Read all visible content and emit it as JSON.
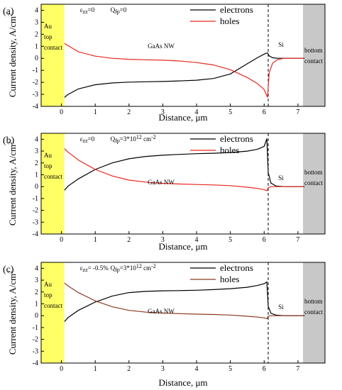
{
  "chart_data": [
    {
      "type": "line",
      "panel_label": "(a)",
      "annotation": "ε",
      "annotation_sub": "zz",
      "annotation_rest": "=0",
      "annotation2": "Q",
      "annotation2_sub": "fp",
      "annotation2_rest": "=0",
      "xlabel": "Distance, μm",
      "ylabel": "Current density, A/cm",
      "ylabel_sup": "2",
      "xlim": [
        -0.6,
        7.8
      ],
      "ylim": [
        -4,
        4.5
      ],
      "xticks": [
        0,
        1,
        2,
        3,
        4,
        5,
        6,
        7
      ],
      "yticks": [
        -4,
        -3,
        -2,
        -1,
        0,
        1,
        2,
        3,
        4
      ],
      "regions": {
        "au_label": [
          "Au",
          "top",
          "contact"
        ],
        "nw_label": "GaAs NW",
        "si_label": "Si",
        "bottom_label": [
          "bottom",
          "contact"
        ]
      },
      "colors": {
        "electrons": "#000000",
        "holes": "#e8281e",
        "au": "#ffff66",
        "bottom": "#c8c8c8"
      },
      "series": [
        {
          "name": "electrons",
          "x": [
            0.09,
            0.2,
            0.5,
            1,
            1.5,
            2,
            2.5,
            3,
            3.5,
            4,
            4.5,
            5,
            5.5,
            5.8,
            6.0,
            6.1,
            6.15,
            6.25,
            6.4,
            6.6,
            7.0,
            7.2
          ],
          "values": [
            -3.25,
            -3.0,
            -2.55,
            -2.2,
            -2.05,
            -1.98,
            -1.95,
            -1.93,
            -1.88,
            -1.82,
            -1.68,
            -1.3,
            -0.45,
            0.05,
            0.35,
            0.45,
            0.2,
            0.05,
            0.0,
            0.0,
            0.0,
            0.0
          ]
        },
        {
          "name": "holes",
          "x": [
            0.09,
            0.2,
            0.5,
            1,
            1.5,
            2,
            2.5,
            3,
            3.5,
            4,
            4.5,
            5,
            5.5,
            5.8,
            6.0,
            6.1,
            6.15,
            6.25,
            6.4,
            6.6,
            7.0,
            7.2
          ],
          "values": [
            1.25,
            1.05,
            0.55,
            0.18,
            0.0,
            -0.08,
            -0.12,
            -0.16,
            -0.22,
            -0.35,
            -0.55,
            -0.95,
            -1.6,
            -2.1,
            -2.6,
            -3.25,
            -1.2,
            -0.4,
            -0.1,
            0.0,
            0.0,
            0.0
          ]
        }
      ]
    },
    {
      "type": "line",
      "panel_label": "(b)",
      "annotation": "ε",
      "annotation_sub": "zz",
      "annotation_rest": "=0",
      "annotation2": "Q",
      "annotation2_sub": "fp",
      "annotation2_rest": "=3*10",
      "annotation2_sup": "12",
      "annotation2_unit": " cm",
      "annotation2_unit_sup": "-2",
      "xlabel": "Distance, μm",
      "ylabel": "Current density, A/cm",
      "ylabel_sup": "2",
      "xlim": [
        -0.6,
        7.8
      ],
      "ylim": [
        -4,
        4.5
      ],
      "xticks": [
        0,
        1,
        2,
        3,
        4,
        5,
        6,
        7
      ],
      "yticks": [
        -4,
        -3,
        -2,
        -1,
        0,
        1,
        2,
        3,
        4
      ],
      "regions": {
        "au_label": [
          "Au",
          "top",
          "contact"
        ],
        "nw_label": "GaAs NW",
        "si_label": "Si",
        "bottom_label": [
          "bottom",
          "contact"
        ]
      },
      "colors": {
        "electrons": "#000000",
        "holes": "#e8281e",
        "au": "#ffff66",
        "bottom": "#c8c8c8"
      },
      "series": [
        {
          "name": "electrons",
          "x": [
            0.09,
            0.2,
            0.5,
            1,
            1.5,
            2,
            2.5,
            3,
            3.5,
            4,
            4.5,
            5,
            5.5,
            5.8,
            6.0,
            6.08,
            6.12,
            6.2,
            6.35,
            6.6,
            7.0,
            7.2
          ],
          "values": [
            -0.3,
            0.05,
            0.65,
            1.45,
            2.0,
            2.35,
            2.55,
            2.65,
            2.72,
            2.78,
            2.82,
            2.88,
            3.0,
            3.15,
            3.4,
            4.05,
            1.2,
            0.3,
            0.05,
            0.0,
            0.0,
            0.0
          ]
        },
        {
          "name": "holes",
          "x": [
            0.09,
            0.2,
            0.5,
            1,
            1.5,
            2,
            2.5,
            3,
            3.5,
            4,
            4.5,
            5,
            5.5,
            5.8,
            6.0,
            6.08,
            6.12,
            6.2,
            6.35,
            6.6,
            7.0,
            7.2
          ],
          "values": [
            3.2,
            2.9,
            2.25,
            1.45,
            0.9,
            0.55,
            0.38,
            0.28,
            0.22,
            0.18,
            0.14,
            0.08,
            -0.05,
            -0.15,
            -0.25,
            -0.35,
            -0.1,
            0.0,
            0.0,
            0.0,
            0.0,
            0.0
          ]
        }
      ]
    },
    {
      "type": "line",
      "panel_label": "(c)",
      "annotation": "ε",
      "annotation_sub": "zz",
      "annotation_rest": "= -0.5%",
      "annotation2": "Q",
      "annotation2_sub": "fp",
      "annotation2_rest": "=3*10",
      "annotation2_sup": "12",
      "annotation2_unit": " cm",
      "annotation2_unit_sup": "-2",
      "xlabel": "Distance, μm",
      "ylabel": "Current density, A/cm",
      "ylabel_sup": "2",
      "xlim": [
        -0.6,
        7.8
      ],
      "ylim": [
        -4,
        4.5
      ],
      "xticks": [
        0,
        1,
        2,
        3,
        4,
        5,
        6,
        7
      ],
      "yticks": [
        -4,
        -3,
        -2,
        -1,
        0,
        1,
        2,
        3,
        4
      ],
      "regions": {
        "au_label": [
          "Au",
          "top",
          "contact"
        ],
        "nw_label": "GaAs NW",
        "si_label": "Si",
        "bottom_label": [
          "bottom",
          "contact"
        ]
      },
      "colors": {
        "electrons": "#000000",
        "holes": "#8b3a1e",
        "au": "#ffff66",
        "bottom": "#c8c8c8"
      },
      "series": [
        {
          "name": "electrons",
          "x": [
            0.09,
            0.2,
            0.5,
            1,
            1.5,
            2,
            2.5,
            3,
            3.5,
            4,
            4.5,
            5,
            5.5,
            5.8,
            6.0,
            6.08,
            6.12,
            6.2,
            6.35,
            6.6,
            7.0,
            7.2
          ],
          "values": [
            -0.5,
            -0.15,
            0.45,
            1.15,
            1.65,
            1.95,
            2.05,
            2.1,
            2.12,
            2.15,
            2.2,
            2.28,
            2.4,
            2.55,
            2.7,
            2.85,
            0.8,
            0.2,
            0.05,
            0.0,
            0.0,
            0.0
          ]
        },
        {
          "name": "holes",
          "x": [
            0.09,
            0.2,
            0.5,
            1,
            1.5,
            2,
            2.5,
            3,
            3.5,
            4,
            4.5,
            5,
            5.5,
            5.8,
            6.0,
            6.08,
            6.12,
            6.2,
            6.35,
            6.6,
            7.0,
            7.2
          ],
          "values": [
            2.75,
            2.5,
            1.95,
            1.25,
            0.75,
            0.45,
            0.3,
            0.22,
            0.17,
            0.13,
            0.1,
            0.05,
            -0.05,
            -0.12,
            -0.18,
            -0.25,
            -0.05,
            0.0,
            0.0,
            0.0,
            0.0,
            0.0
          ]
        }
      ]
    }
  ]
}
